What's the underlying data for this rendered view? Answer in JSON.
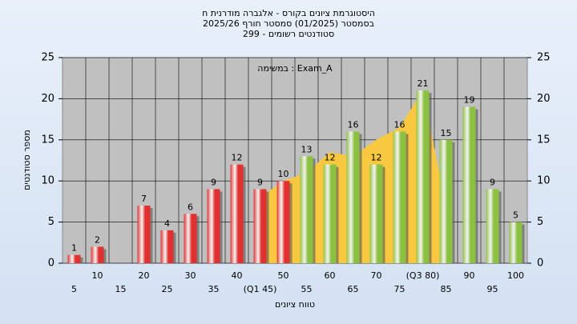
{
  "chart_data": {
    "type": "bar",
    "title": "היסטוגרמת ציונים בקורס - אלגברה מודרנית ח",
    "subtitle": "בסמסטר  (01/2025)  סמסטר חורף 2025/26",
    "subtitle2": "סטודנטים רשומים - 299",
    "annotation": "במשימה : Exam_A",
    "y_label": "מספר סטודנטים",
    "x_label": "טווח ציונים",
    "categories": [
      "5",
      "10",
      "15",
      "20",
      "25",
      "30",
      "35",
      "40",
      "(Q1 45)",
      "50",
      "55",
      "60",
      "65",
      "70",
      "75",
      "(Q3 80)",
      "85",
      "90",
      "95",
      "100"
    ],
    "values": [
      1,
      2,
      null,
      7,
      4,
      6,
      9,
      12,
      9,
      10,
      13,
      12,
      16,
      12,
      16,
      21,
      15,
      19,
      9,
      5
    ],
    "colors": [
      "#e03030",
      "#e03030",
      "#e03030",
      "#e03030",
      "#e03030",
      "#e03030",
      "#e03030",
      "#e03030",
      "#e03030",
      "#e03030",
      "#8cc040",
      "#8cc040",
      "#8cc040",
      "#8cc040",
      "#8cc040",
      "#8cc040",
      "#8cc040",
      "#8cc040",
      "#8cc040",
      "#8cc040"
    ],
    "area_values": [
      null,
      null,
      null,
      null,
      null,
      null,
      null,
      null,
      8,
      10,
      11,
      13.5,
      13,
      15,
      16.5,
      21,
      7,
      null,
      null,
      null
    ],
    "area_color": "#f8c840",
    "ylim": [
      0,
      25
    ],
    "yticks": [
      0,
      5,
      10,
      15,
      20,
      25
    ],
    "y2lim": [
      0,
      25
    ],
    "y2ticks": [
      0,
      5,
      10,
      15,
      20,
      25
    ],
    "grid": true
  }
}
